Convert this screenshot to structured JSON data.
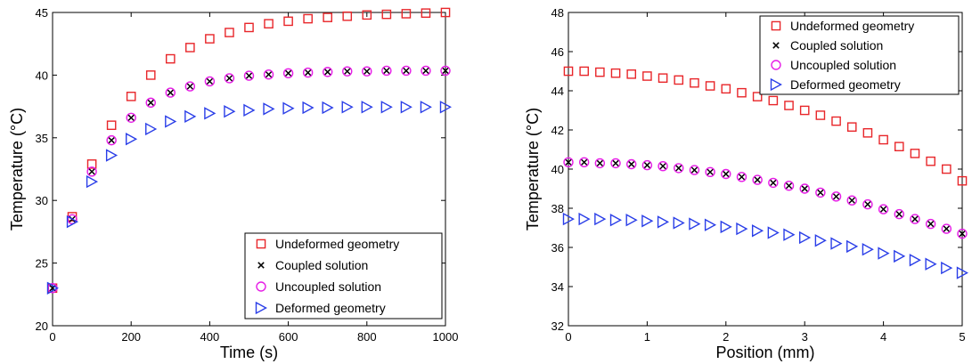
{
  "chart_data": [
    {
      "type": "scatter",
      "title": "",
      "xlabel": "Time (s)",
      "ylabel": "Temperature (°C)",
      "xlim": [
        0,
        1000
      ],
      "ylim": [
        20,
        45
      ],
      "xticks": [
        "0",
        "200",
        "400",
        "600",
        "800",
        "1000"
      ],
      "yticks": [
        "20",
        "25",
        "30",
        "35",
        "40",
        "45"
      ],
      "legend_position": "bottom-right",
      "grid": false,
      "x": [
        0,
        50,
        100,
        150,
        200,
        250,
        300,
        350,
        400,
        450,
        500,
        550,
        600,
        650,
        700,
        750,
        800,
        850,
        900,
        950,
        1000
      ],
      "series": [
        {
          "name": "Undeformed geometry",
          "marker": "square",
          "color": "#e8262a",
          "values": [
            23.0,
            28.7,
            32.9,
            36.0,
            38.3,
            40.0,
            41.3,
            42.2,
            42.9,
            43.4,
            43.8,
            44.1,
            44.3,
            44.5,
            44.6,
            44.7,
            44.8,
            44.85,
            44.9,
            44.95,
            45.0
          ]
        },
        {
          "name": "Coupled solution",
          "marker": "x",
          "color": "#000000",
          "values": [
            23.0,
            28.5,
            32.3,
            34.8,
            36.6,
            37.8,
            38.6,
            39.1,
            39.5,
            39.75,
            39.95,
            40.05,
            40.15,
            40.2,
            40.25,
            40.3,
            40.3,
            40.35,
            40.35,
            40.35,
            40.35
          ]
        },
        {
          "name": "Uncoupled solution",
          "marker": "circle",
          "color": "#e61ee6",
          "values": [
            23.0,
            28.5,
            32.3,
            34.8,
            36.6,
            37.8,
            38.6,
            39.1,
            39.5,
            39.75,
            39.95,
            40.05,
            40.15,
            40.2,
            40.25,
            40.3,
            40.3,
            40.35,
            40.35,
            40.35,
            40.35
          ]
        },
        {
          "name": "Deformed geometry",
          "marker": "triangle-right",
          "color": "#2a3ee8",
          "values": [
            23.0,
            28.3,
            31.5,
            33.6,
            34.9,
            35.7,
            36.3,
            36.7,
            36.95,
            37.1,
            37.2,
            37.3,
            37.35,
            37.4,
            37.4,
            37.45,
            37.45,
            37.45,
            37.45,
            37.45,
            37.45
          ]
        }
      ]
    },
    {
      "type": "scatter",
      "title": "",
      "xlabel": "Position (mm)",
      "ylabel": "Temperature (°C)",
      "xlim": [
        0,
        5
      ],
      "ylim": [
        32,
        48
      ],
      "xticks": [
        "0",
        "1",
        "2",
        "3",
        "4",
        "5"
      ],
      "yticks": [
        "32",
        "34",
        "36",
        "38",
        "40",
        "42",
        "44",
        "46",
        "48"
      ],
      "legend_position": "top-right",
      "grid": false,
      "x": [
        0,
        0.2,
        0.4,
        0.6,
        0.8,
        1.0,
        1.2,
        1.4,
        1.6,
        1.8,
        2.0,
        2.2,
        2.4,
        2.6,
        2.8,
        3.0,
        3.2,
        3.4,
        3.6,
        3.8,
        4.0,
        4.2,
        4.4,
        4.6,
        4.8,
        5.0
      ],
      "series": [
        {
          "name": "Undeformed geometry",
          "marker": "square",
          "color": "#e8262a",
          "values": [
            45.0,
            45.0,
            44.95,
            44.9,
            44.85,
            44.75,
            44.65,
            44.55,
            44.4,
            44.25,
            44.1,
            43.9,
            43.7,
            43.5,
            43.25,
            43.0,
            42.75,
            42.45,
            42.15,
            41.85,
            41.5,
            41.15,
            40.8,
            40.4,
            40.0,
            39.4
          ]
        },
        {
          "name": "Coupled solution",
          "marker": "x",
          "color": "#000000",
          "values": [
            40.35,
            40.35,
            40.3,
            40.3,
            40.25,
            40.2,
            40.15,
            40.05,
            39.95,
            39.85,
            39.75,
            39.6,
            39.45,
            39.3,
            39.15,
            39.0,
            38.8,
            38.6,
            38.4,
            38.2,
            37.95,
            37.7,
            37.45,
            37.2,
            36.95,
            36.7
          ]
        },
        {
          "name": "Uncoupled solution",
          "marker": "circle",
          "color": "#e61ee6",
          "values": [
            40.35,
            40.35,
            40.3,
            40.3,
            40.25,
            40.2,
            40.15,
            40.05,
            39.95,
            39.85,
            39.75,
            39.6,
            39.45,
            39.3,
            39.15,
            39.0,
            38.8,
            38.6,
            38.4,
            38.2,
            37.95,
            37.7,
            37.45,
            37.2,
            36.95,
            36.7
          ]
        },
        {
          "name": "Deformed geometry",
          "marker": "triangle-right",
          "color": "#2a3ee8",
          "values": [
            37.45,
            37.45,
            37.45,
            37.4,
            37.4,
            37.35,
            37.3,
            37.25,
            37.2,
            37.15,
            37.05,
            36.95,
            36.85,
            36.75,
            36.65,
            36.5,
            36.35,
            36.2,
            36.05,
            35.9,
            35.7,
            35.55,
            35.35,
            35.15,
            34.95,
            34.7
          ]
        }
      ]
    }
  ]
}
